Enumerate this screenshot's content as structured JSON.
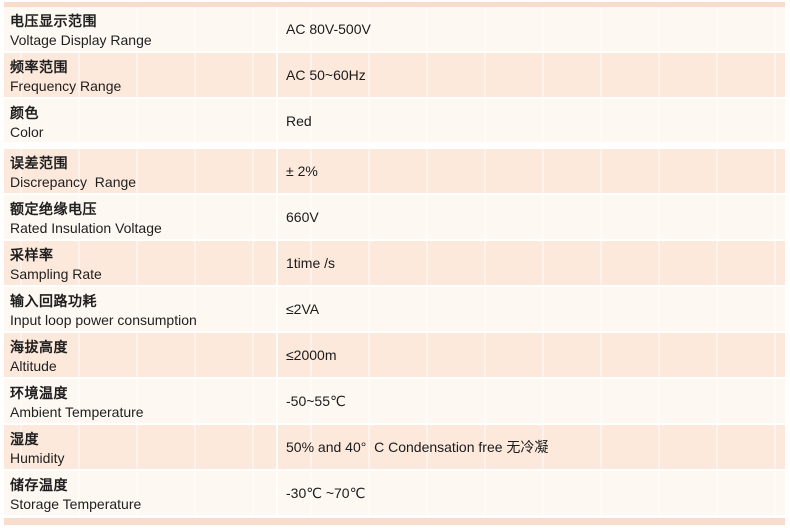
{
  "table": {
    "rows": [
      {
        "zh": "电压显示范围",
        "en": "Voltage Display Range",
        "value": "AC 80V-500V"
      },
      {
        "zh": "频率范围",
        "en": "Frequency Range",
        "value": "AC 50~60Hz"
      },
      {
        "zh": "颜色",
        "en": "Color",
        "value": "Red"
      },
      {
        "zh": "误差范围",
        "en": "Discrepancy  Range",
        "value": "± 2%"
      },
      {
        "zh": "额定绝缘电压",
        "en": "Rated Insulation Voltage",
        "value": "660V"
      },
      {
        "zh": "采样率",
        "en": "Sampling Rate",
        "value": "1time /s"
      },
      {
        "zh": "输入回路功耗",
        "en": "Input loop power consumption",
        "value": "≤2VA"
      },
      {
        "zh": "海拔高度",
        "en": "Altitude",
        "value": "≤2000m"
      },
      {
        "zh": "环境温度",
        "en": "Ambient Temperature",
        "value": "-50~55℃"
      },
      {
        "zh": "湿度",
        "en": "Humidity",
        "value": "50% and 40°  C Condensation free 无冷凝"
      },
      {
        "zh": "储存温度",
        "en": "Storage Temperature",
        "value": "-30℃ ~70℃"
      }
    ],
    "colors": {
      "row_pink": "#fce9dc",
      "row_light": "#fdf8f2",
      "strip": "#f9dccb",
      "text": "#1f1f1f"
    }
  }
}
